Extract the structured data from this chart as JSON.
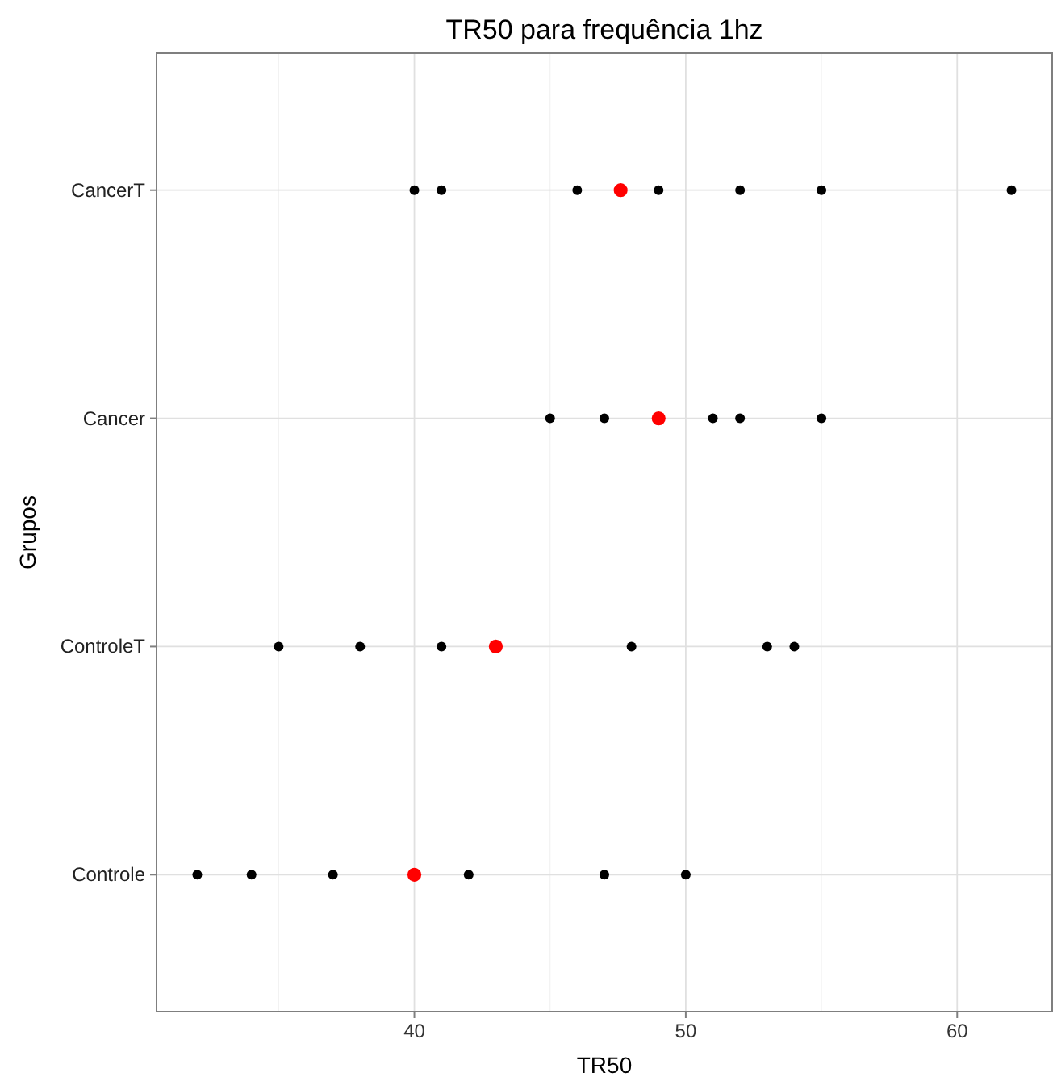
{
  "chart_data": {
    "type": "scatter",
    "title": "TR50 para frequência 1hz",
    "xlabel": "TR50",
    "ylabel": "Grupos",
    "orientation": "horizontal",
    "categories": [
      "CancerT",
      "Cancer",
      "ControleT",
      "Controle"
    ],
    "xlim": [
      30.5,
      63.5
    ],
    "xticks": [
      {
        "value": 35,
        "label": null
      },
      40,
      {
        "value": 45,
        "label": null
      },
      50,
      {
        "value": 55,
        "label": null
      },
      60
    ],
    "grid": true,
    "marker": "circle",
    "series": [
      {
        "color": "#000000",
        "x": [
          "CancerT",
          "CancerT",
          "CancerT",
          "CancerT",
          "CancerT",
          "CancerT",
          "CancerT",
          "Cancer",
          "Cancer",
          "Cancer",
          "Cancer",
          "Cancer",
          "ControleT",
          "ControleT",
          "ControleT",
          "ControleT",
          "ControleT",
          "ControleT",
          "Controle",
          "Controle",
          "Controle",
          "Controle",
          "Controle",
          "Controle"
        ],
        "values": [
          40,
          41,
          46,
          49,
          52,
          55,
          62,
          45,
          47,
          51,
          52,
          55,
          35,
          38,
          41,
          48,
          53,
          54,
          32,
          34,
          37,
          42,
          47,
          50
        ]
      },
      {
        "color": "#ff0000",
        "x": [
          "CancerT",
          "Cancer",
          "ControleT",
          "Controle"
        ],
        "values": [
          47.6,
          49,
          43,
          40
        ]
      }
    ]
  }
}
